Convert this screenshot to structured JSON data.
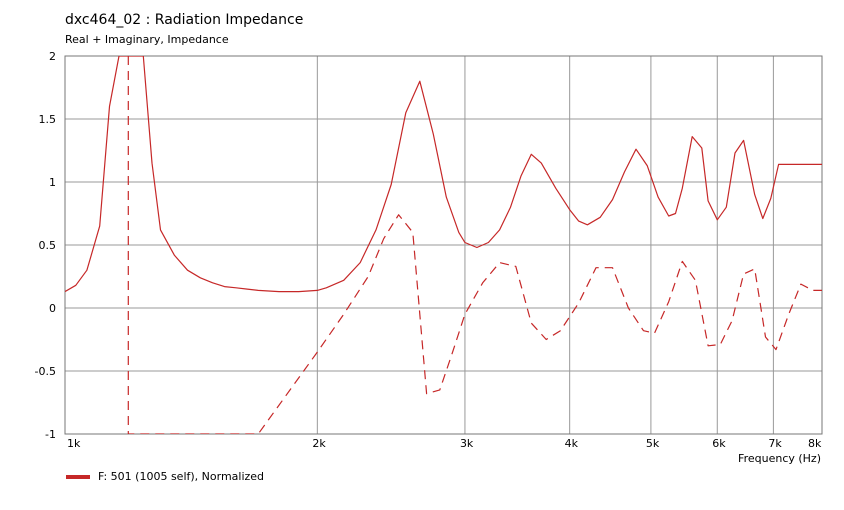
{
  "chart_data": {
    "type": "line",
    "title": "dxc464_02 : Radiation Impedance",
    "subtitle": "Real + Imaginary, Impedance",
    "xlabel": "Frequency  (Hz)",
    "x_scale": "log",
    "xlim": [
      1000,
      8000
    ],
    "ylim": [
      -1,
      2
    ],
    "grid": true,
    "x_ticks": [
      {
        "value": 1000,
        "label": "1k"
      },
      {
        "value": 2000,
        "label": "2k"
      },
      {
        "value": 3000,
        "label": "3k"
      },
      {
        "value": 4000,
        "label": "4k"
      },
      {
        "value": 5000,
        "label": "5k"
      },
      {
        "value": 6000,
        "label": "6k"
      },
      {
        "value": 7000,
        "label": "7k"
      },
      {
        "value": 8000,
        "label": "8k"
      }
    ],
    "y_ticks": [
      {
        "value": 2,
        "label": "2"
      },
      {
        "value": 1.5,
        "label": "1.5"
      },
      {
        "value": 1,
        "label": "1"
      },
      {
        "value": 0.5,
        "label": "0.5"
      },
      {
        "value": 0,
        "label": "0"
      },
      {
        "value": -0.5,
        "label": "-0.5"
      },
      {
        "value": -1,
        "label": "-1"
      }
    ],
    "color": "#c62828",
    "legend": {
      "placement": "bottom-left",
      "entries": [
        {
          "label": "F: 501 (1005 self), Normalized",
          "color": "#c62828"
        }
      ]
    },
    "series": [
      {
        "part": "real",
        "style": "solid",
        "x": [
          1000,
          1030,
          1062,
          1100,
          1130,
          1160,
          1170,
          1180,
          1230,
          1240,
          1270,
          1300,
          1350,
          1400,
          1450,
          1500,
          1550,
          1600,
          1650,
          1700,
          1800,
          1900,
          2000,
          2050,
          2150,
          2250,
          2350,
          2450,
          2550,
          2650,
          2750,
          2850,
          2950,
          3000,
          3100,
          3200,
          3300,
          3400,
          3500,
          3600,
          3700,
          3850,
          4000,
          4100,
          4200,
          4350,
          4500,
          4650,
          4800,
          4950,
          5100,
          5250,
          5350,
          5450,
          5600,
          5750,
          5850,
          6000,
          6150,
          6300,
          6450,
          6650,
          6800,
          6950,
          7100,
          7300,
          7500,
          7700,
          7850,
          8000
        ],
        "y": [
          0.13,
          0.18,
          0.3,
          0.65,
          1.6,
          2.0,
          2.0,
          2.0,
          2.0,
          2.0,
          1.15,
          0.62,
          0.42,
          0.3,
          0.24,
          0.2,
          0.17,
          0.16,
          0.15,
          0.14,
          0.13,
          0.13,
          0.14,
          0.16,
          0.22,
          0.36,
          0.62,
          0.98,
          1.55,
          1.8,
          1.38,
          0.88,
          0.6,
          0.52,
          0.48,
          0.52,
          0.62,
          0.8,
          1.05,
          1.22,
          1.15,
          0.95,
          0.78,
          0.69,
          0.66,
          0.72,
          0.86,
          1.08,
          1.26,
          1.13,
          0.88,
          0.73,
          0.75,
          0.95,
          1.36,
          1.27,
          0.85,
          0.7,
          0.8,
          1.23,
          1.33,
          0.9,
          0.71,
          0.87,
          1.14,
          1.14,
          1.14,
          1.14,
          1.14,
          1.14
        ]
      },
      {
        "part": "imaginary",
        "style": "dashed",
        "x": [
          1190,
          1190,
          1350,
          1500,
          1650,
          1700,
          2000,
          2150,
          2300,
          2400,
          2500,
          2600,
          2700,
          2800,
          2900,
          3000,
          3150,
          3300,
          3450,
          3600,
          3750,
          3900,
          4100,
          4300,
          4500,
          4700,
          4900,
          5050,
          5250,
          5450,
          5650,
          5850,
          6050,
          6250,
          6450,
          6650,
          6850,
          7050,
          7300,
          7550,
          7800,
          8000
        ],
        "y": [
          2.0,
          -1.0,
          -1.0,
          -1.0,
          -1.0,
          -1.0,
          -0.35,
          -0.05,
          0.25,
          0.55,
          0.74,
          0.6,
          -0.68,
          -0.65,
          -0.35,
          -0.05,
          0.2,
          0.36,
          0.33,
          -0.12,
          -0.25,
          -0.18,
          0.04,
          0.32,
          0.32,
          0.0,
          -0.18,
          -0.2,
          0.05,
          0.37,
          0.22,
          -0.3,
          -0.29,
          -0.1,
          0.27,
          0.31,
          -0.23,
          -0.33,
          -0.05,
          0.19,
          0.14,
          0.14
        ]
      }
    ]
  }
}
